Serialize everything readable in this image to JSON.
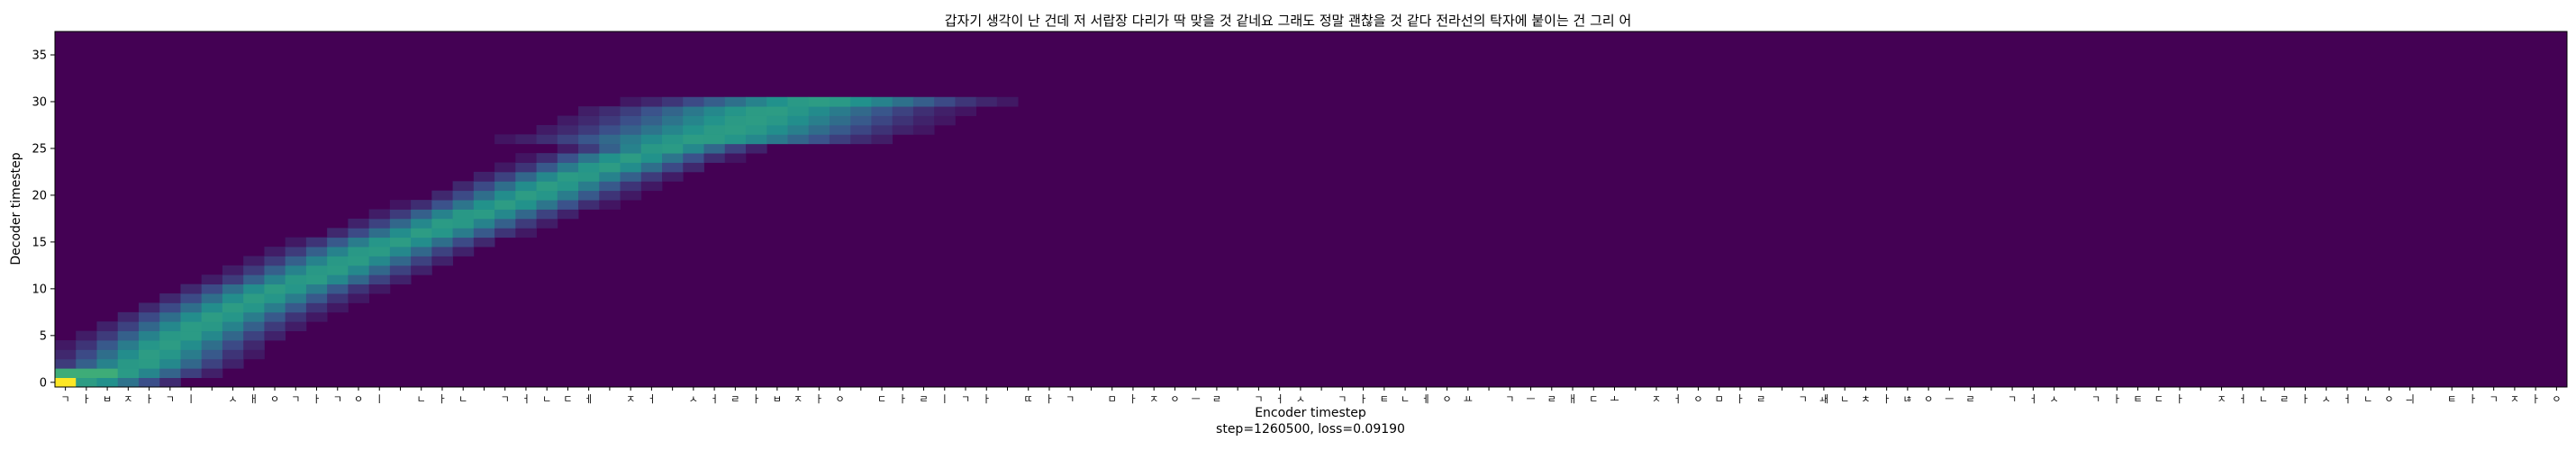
{
  "chart_data": {
    "type": "heatmap",
    "title": "갑자기 생각이 난 건데 저 서랍장 다리가 딱 맞을 것 같네요 그래도 정말 괜찮을 것 같다 전라선의 탁자에 붙이는 건 그리 어",
    "xlabel": "Encoder timestep",
    "footer": "step=1260500, loss=0.09190",
    "ylabel": "Decoder timestep",
    "ylim": [
      0,
      38
    ],
    "yticks": [
      0,
      5,
      10,
      15,
      20,
      25,
      30,
      35
    ],
    "n_encoder": 120,
    "n_decoder": 38,
    "active_decoder_steps": 31,
    "colormap": {
      "low": "#440154",
      "mid1": "#31688e",
      "mid2": "#35b779",
      "high": "#fde725"
    },
    "encoder_tokens": [
      "ㄱ",
      "ㅏ",
      "ㅂ",
      "ㅈ",
      "ㅏ",
      "ㄱ",
      "ㅣ",
      "",
      "ㅅ",
      "ㅐ",
      "ㅇ",
      "ㄱ",
      "ㅏ",
      "ㄱ",
      "ㅇ",
      "ㅣ",
      "",
      "ㄴ",
      "ㅏ",
      "ㄴ",
      "",
      "ㄱ",
      "ㅓ",
      "ㄴ",
      "ㄷ",
      "ㅔ",
      "",
      "ㅈ",
      "ㅓ",
      "",
      "ㅅ",
      "ㅓ",
      "ㄹ",
      "ㅏ",
      "ㅂ",
      "ㅈ",
      "ㅏ",
      "ㅇ",
      "",
      "ㄷ",
      "ㅏ",
      "ㄹ",
      "ㅣ",
      "ㄱ",
      "ㅏ",
      "",
      "ㄸ",
      "ㅏ",
      "ㄱ",
      "",
      "ㅁ",
      "ㅏ",
      "ㅈ",
      "ㅇ",
      "ㅡ",
      "ㄹ",
      "",
      "ㄱ",
      "ㅓ",
      "ㅅ",
      "",
      "ㄱ",
      "ㅏ",
      "ㅌ",
      "ㄴ",
      "ㅔ",
      "ㅇ",
      "ㅛ",
      "",
      "ㄱ",
      "ㅡ",
      "ㄹ",
      "ㅐ",
      "ㄷ",
      "ㅗ",
      "",
      "ㅈ",
      "ㅓ",
      "ㅇ",
      "ㅁ",
      "ㅏ",
      "ㄹ",
      "",
      "ㄱ",
      "ㅙ",
      "ㄴ",
      "ㅊ",
      "ㅏ",
      "ㄶ",
      "ㅇ",
      "ㅡ",
      "ㄹ",
      "",
      "ㄱ",
      "ㅓ",
      "ㅅ",
      "",
      "ㄱ",
      "ㅏ",
      "ㅌ",
      "ㄷ",
      "ㅏ",
      "",
      "ㅈ",
      "ㅓ",
      "ㄴ",
      "ㄹ",
      "ㅏ",
      "ㅅ",
      "ㅓ",
      "ㄴ",
      "ㅇ",
      "ㅢ",
      "",
      "ㅌ",
      "ㅏ",
      "ㄱ",
      "ㅈ",
      "ㅏ",
      "ㅇ"
    ],
    "alignment_peaks": [
      [
        0,
        0.9
      ],
      [
        1,
        2.5
      ],
      [
        2,
        3.6
      ],
      [
        3,
        4.2
      ],
      [
        4,
        4.8
      ],
      [
        5,
        5.6
      ],
      [
        6,
        6.4
      ],
      [
        7,
        7.2
      ],
      [
        8,
        8.2
      ],
      [
        9,
        9.2
      ],
      [
        10,
        10.2
      ],
      [
        11,
        11.6
      ],
      [
        12,
        12.6
      ],
      [
        13,
        13.6
      ],
      [
        14,
        14.6
      ],
      [
        15,
        15.8
      ],
      [
        16,
        17.2
      ],
      [
        17,
        18.4
      ],
      [
        18,
        19.6
      ],
      [
        19,
        21.0
      ],
      [
        20,
        22.2
      ],
      [
        21,
        23.2
      ],
      [
        22,
        24.4
      ],
      [
        23,
        25.8
      ],
      [
        24,
        27.0
      ],
      [
        25,
        28.6
      ],
      [
        26,
        30.4
      ],
      [
        27,
        31.8
      ],
      [
        28,
        32.8
      ],
      [
        29,
        33.6
      ],
      [
        30,
        36.0
      ]
    ]
  }
}
